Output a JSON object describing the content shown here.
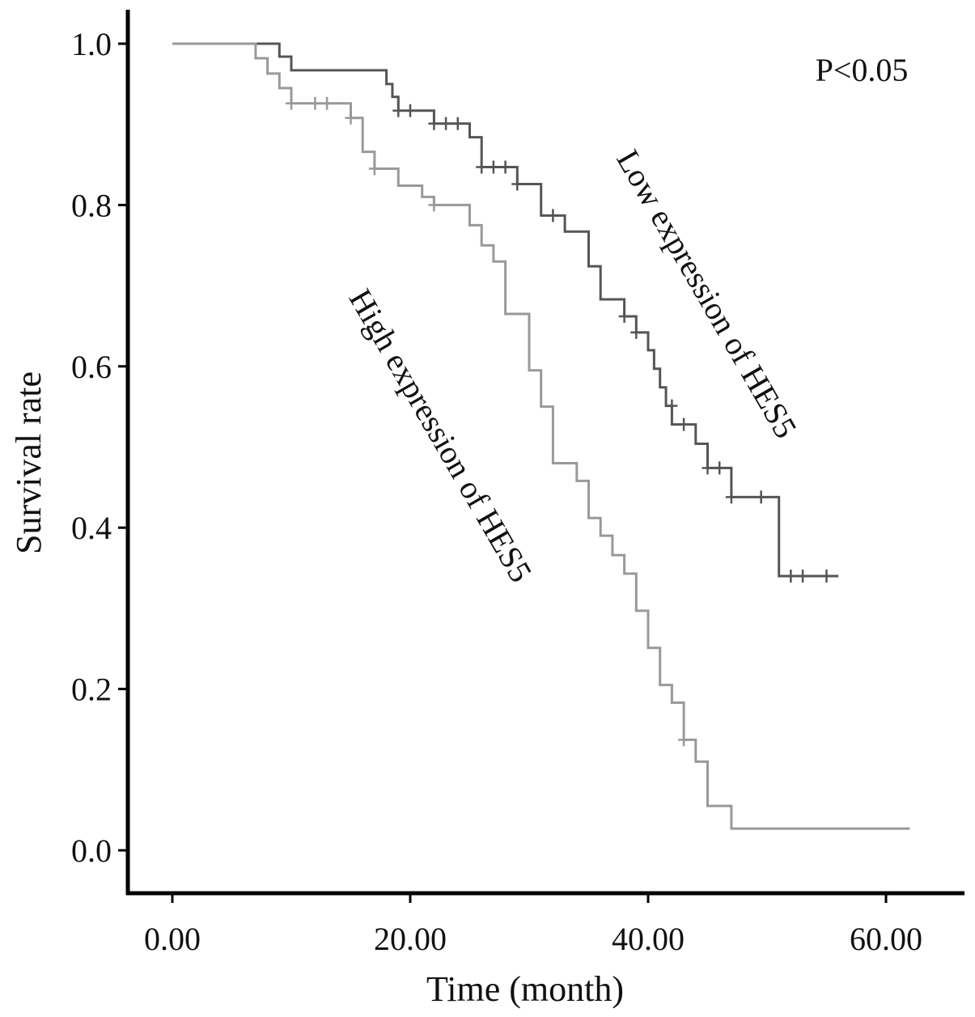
{
  "chart_data": {
    "type": "line",
    "subtype": "kaplan-meier",
    "xlabel": "Time (month)",
    "ylabel": "Survival rate",
    "xlim": [
      0,
      60
    ],
    "ylim": [
      0,
      1
    ],
    "x_ticks": [
      0,
      20,
      40,
      60
    ],
    "x_tick_labels": [
      "0.00",
      "20.00",
      "40.00",
      "60.00"
    ],
    "y_ticks": [
      0,
      0.2,
      0.4,
      0.6,
      0.8,
      1.0
    ],
    "y_tick_labels": [
      "0.0",
      "0.2",
      "0.4",
      "0.6",
      "0.8",
      "1.0"
    ],
    "grid": false,
    "annotation": "P<0.05",
    "series": [
      {
        "name": "Low expression of HES5",
        "color": "#555555",
        "steps": [
          [
            0,
            1.0
          ],
          [
            9,
            0.984
          ],
          [
            10,
            0.967
          ],
          [
            18,
            0.95
          ],
          [
            18.5,
            0.934
          ],
          [
            19,
            0.917
          ],
          [
            22,
            0.901
          ],
          [
            25,
            0.884
          ],
          [
            26,
            0.847
          ],
          [
            29,
            0.826
          ],
          [
            31,
            0.787
          ],
          [
            33,
            0.767
          ],
          [
            35,
            0.724
          ],
          [
            36,
            0.683
          ],
          [
            38,
            0.662
          ],
          [
            39,
            0.642
          ],
          [
            40,
            0.62
          ],
          [
            40.5,
            0.597
          ],
          [
            41,
            0.574
          ],
          [
            41.5,
            0.551
          ],
          [
            42,
            0.528
          ],
          [
            44,
            0.504
          ],
          [
            45,
            0.474
          ],
          [
            46,
            0.474
          ],
          [
            47,
            0.438
          ],
          [
            51,
            0.34
          ],
          [
            56,
            0.34
          ]
        ],
        "censored": [
          [
            19,
            0.917
          ],
          [
            20,
            0.917
          ],
          [
            22,
            0.901
          ],
          [
            23,
            0.901
          ],
          [
            24,
            0.901
          ],
          [
            26,
            0.847
          ],
          [
            27,
            0.847
          ],
          [
            28,
            0.847
          ],
          [
            29,
            0.826
          ],
          [
            32,
            0.787
          ],
          [
            38,
            0.662
          ],
          [
            39,
            0.642
          ],
          [
            42,
            0.551
          ],
          [
            43,
            0.528
          ],
          [
            45,
            0.474
          ],
          [
            46,
            0.474
          ],
          [
            47,
            0.438
          ],
          [
            49.5,
            0.438
          ],
          [
            52,
            0.34
          ],
          [
            53,
            0.34
          ],
          [
            55,
            0.34
          ]
        ]
      },
      {
        "name": "High expression of HES5",
        "color": "#999999",
        "steps": [
          [
            0,
            1.0
          ],
          [
            7,
            0.982
          ],
          [
            8,
            0.963
          ],
          [
            9,
            0.945
          ],
          [
            10,
            0.926
          ],
          [
            15,
            0.908
          ],
          [
            16,
            0.866
          ],
          [
            17,
            0.845
          ],
          [
            19,
            0.824
          ],
          [
            21,
            0.81
          ],
          [
            22,
            0.8
          ],
          [
            25,
            0.775
          ],
          [
            26,
            0.75
          ],
          [
            27,
            0.73
          ],
          [
            28,
            0.665
          ],
          [
            30,
            0.595
          ],
          [
            31,
            0.55
          ],
          [
            32,
            0.48
          ],
          [
            34,
            0.458
          ],
          [
            35,
            0.412
          ],
          [
            36,
            0.39
          ],
          [
            37,
            0.366
          ],
          [
            38,
            0.343
          ],
          [
            39,
            0.297
          ],
          [
            40,
            0.251
          ],
          [
            41,
            0.205
          ],
          [
            42,
            0.183
          ],
          [
            43,
            0.137
          ],
          [
            44,
            0.11
          ],
          [
            45,
            0.055
          ],
          [
            47,
            0.027
          ],
          [
            62,
            0.027
          ]
        ],
        "censored": [
          [
            10,
            0.926
          ],
          [
            12,
            0.926
          ],
          [
            13,
            0.926
          ],
          [
            15,
            0.908
          ],
          [
            17,
            0.845
          ],
          [
            22,
            0.8
          ],
          [
            43,
            0.137
          ]
        ]
      }
    ]
  }
}
